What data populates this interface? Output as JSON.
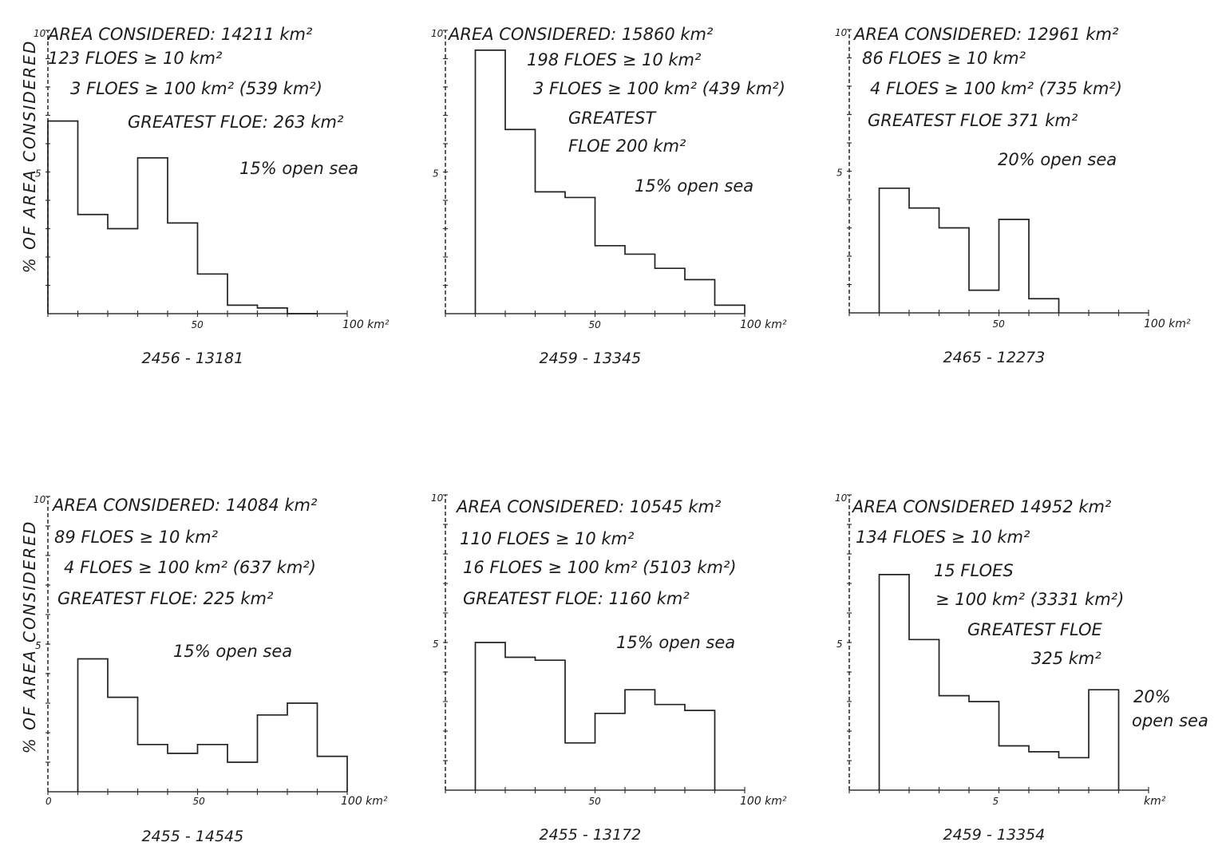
{
  "y_axis_label": "% OF AREA CONSIDERED",
  "chart_data": [
    {
      "type": "bar",
      "caption": "2456 - 13181",
      "annotations": [
        "AREA CONSIDERED: 14211 km²",
        "123 FLOES ≥ 10 km²",
        "3 FLOES ≥ 100 km² (539 km²)",
        "GREATEST FLOE: 263 km²",
        "15% open sea"
      ],
      "x_ticks": [
        "50",
        "100 km²"
      ],
      "y_ticks": [
        "10",
        "5"
      ],
      "xlim": [
        0,
        100
      ],
      "ylim": [
        0,
        10
      ],
      "bins": [
        [
          0,
          10
        ],
        [
          10,
          20
        ],
        [
          20,
          30
        ],
        [
          30,
          40
        ],
        [
          40,
          50
        ],
        [
          50,
          60
        ],
        [
          60,
          70
        ],
        [
          70,
          80
        ],
        [
          80,
          90
        ]
      ],
      "values": [
        6.8,
        3.5,
        3.0,
        5.5,
        3.2,
        1.4,
        0.3,
        0.2,
        0.0
      ]
    },
    {
      "type": "bar",
      "caption": "2459 - 13345",
      "annotations": [
        "AREA CONSIDERED: 15860 km²",
        "198 FLOES ≥ 10 km²",
        "3 FLOES ≥ 100 km² (439 km²)",
        "GREATEST",
        "FLOE 200 km²",
        "15% open sea"
      ],
      "x_ticks": [
        "50",
        "100 km²"
      ],
      "y_ticks": [
        "10",
        "5"
      ],
      "xlim": [
        0,
        100
      ],
      "ylim": [
        0,
        10
      ],
      "bins": [
        [
          10,
          20
        ],
        [
          20,
          30
        ],
        [
          30,
          40
        ],
        [
          40,
          50
        ],
        [
          50,
          60
        ],
        [
          60,
          70
        ],
        [
          70,
          80
        ],
        [
          80,
          90
        ],
        [
          90,
          100
        ]
      ],
      "values": [
        9.3,
        6.5,
        4.3,
        4.1,
        2.4,
        2.1,
        1.6,
        1.2,
        0.3
      ]
    },
    {
      "type": "bar",
      "caption": "2465 - 12273",
      "annotations": [
        "AREA CONSIDERED: 12961 km²",
        "86 FLOES ≥ 10 km²",
        "4 FLOES ≥ 100 km² (735 km²)",
        "GREATEST FLOE 371 km²",
        "20% open sea"
      ],
      "x_ticks": [
        "50",
        "100 km²"
      ],
      "y_ticks": [
        "10",
        "5"
      ],
      "xlim": [
        0,
        100
      ],
      "ylim": [
        0,
        10
      ],
      "bins": [
        [
          10,
          20
        ],
        [
          20,
          30
        ],
        [
          30,
          40
        ],
        [
          40,
          50
        ],
        [
          50,
          60
        ],
        [
          60,
          70
        ]
      ],
      "values": [
        4.4,
        3.7,
        3.0,
        0.8,
        3.3,
        0.5
      ]
    },
    {
      "type": "bar",
      "caption": "2455 - 14545",
      "annotations": [
        "AREA CONSIDERED: 14084 km²",
        "89 FLOES ≥ 10 km²",
        "4 FLOES ≥ 100 km² (637 km²)",
        "GREATEST FLOE: 225 km²",
        "15% open sea"
      ],
      "x_ticks": [
        "0",
        "50",
        "100 km²"
      ],
      "y_ticks": [
        "10",
        "5"
      ],
      "xlim": [
        0,
        100
      ],
      "ylim": [
        0,
        10
      ],
      "bins": [
        [
          10,
          20
        ],
        [
          20,
          30
        ],
        [
          30,
          40
        ],
        [
          40,
          50
        ],
        [
          50,
          60
        ],
        [
          60,
          70
        ],
        [
          70,
          80
        ],
        [
          80,
          90
        ],
        [
          90,
          100
        ]
      ],
      "values": [
        4.5,
        3.2,
        1.6,
        1.3,
        1.6,
        1.0,
        2.6,
        3.0,
        1.2
      ]
    },
    {
      "type": "bar",
      "caption": "2455 - 13172",
      "annotations": [
        "AREA CONSIDERED: 10545 km²",
        "110 FLOES ≥ 10 km²",
        "16 FLOES ≥ 100 km² (5103 km²)",
        "GREATEST FLOE: 1160 km²",
        "15% open sea"
      ],
      "x_ticks": [
        "50",
        "100 km²"
      ],
      "y_ticks": [
        "10",
        "5"
      ],
      "xlim": [
        0,
        100
      ],
      "ylim": [
        0,
        10
      ],
      "bins": [
        [
          10,
          20
        ],
        [
          20,
          30
        ],
        [
          30,
          40
        ],
        [
          40,
          50
        ],
        [
          50,
          60
        ],
        [
          60,
          70
        ],
        [
          70,
          80
        ],
        [
          80,
          90
        ]
      ],
      "values": [
        5.0,
        4.5,
        4.4,
        1.6,
        2.6,
        3.4,
        2.9,
        2.7
      ]
    },
    {
      "type": "bar",
      "caption": "2459 - 13354",
      "annotations": [
        "AREA CONSIDERED 14952 km²",
        "134 FLOES ≥ 10 km²",
        "15 FLOES",
        "≥ 100 km² (3331 km²)",
        "GREATEST FLOE",
        "325 km²",
        "20%",
        "open sea"
      ],
      "x_ticks": [
        "5",
        "km²"
      ],
      "y_ticks": [
        "10",
        "5"
      ],
      "xlim": [
        0,
        100
      ],
      "ylim": [
        0,
        10
      ],
      "bins": [
        [
          10,
          20
        ],
        [
          20,
          30
        ],
        [
          30,
          40
        ],
        [
          40,
          50
        ],
        [
          50,
          60
        ],
        [
          60,
          70
        ],
        [
          70,
          80
        ],
        [
          80,
          90
        ]
      ],
      "values": [
        7.3,
        5.1,
        3.2,
        3.0,
        1.5,
        1.3,
        1.1,
        3.4
      ]
    }
  ]
}
